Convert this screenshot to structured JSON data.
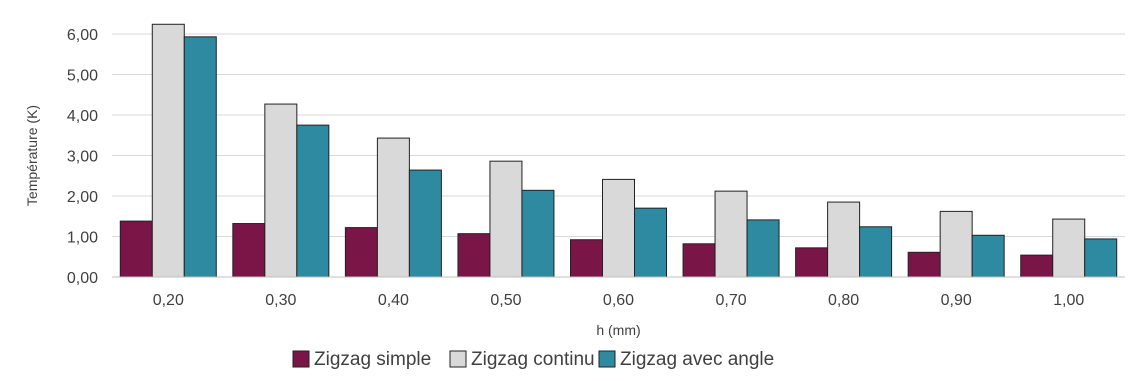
{
  "chart_data": {
    "type": "bar",
    "categories": [
      "0,20",
      "0,30",
      "0,40",
      "0,50",
      "0,60",
      "0,70",
      "0,80",
      "0,90",
      "1,00"
    ],
    "series": [
      {
        "name": "Zigzag simple",
        "color": "#7a1548",
        "values": [
          1.38,
          1.32,
          1.22,
          1.07,
          0.92,
          0.82,
          0.72,
          0.61,
          0.54
        ]
      },
      {
        "name": "Zigzag continu",
        "color": "#d9d9d9",
        "values": [
          6.24,
          4.27,
          3.43,
          2.86,
          2.41,
          2.12,
          1.85,
          1.62,
          1.43
        ]
      },
      {
        "name": "Zigzag avec angle",
        "color": "#2e8aa0",
        "values": [
          5.93,
          3.75,
          2.64,
          2.14,
          1.7,
          1.41,
          1.24,
          1.03,
          0.94
        ]
      }
    ],
    "xlabel": "h (mm)",
    "ylabel": "Température (K)",
    "ylim": [
      0,
      6
    ],
    "yticks": [
      "0,00",
      "1,00",
      "2,00",
      "3,00",
      "4,00",
      "5,00",
      "6,00"
    ],
    "grid": true,
    "legend_position": "bottom"
  }
}
